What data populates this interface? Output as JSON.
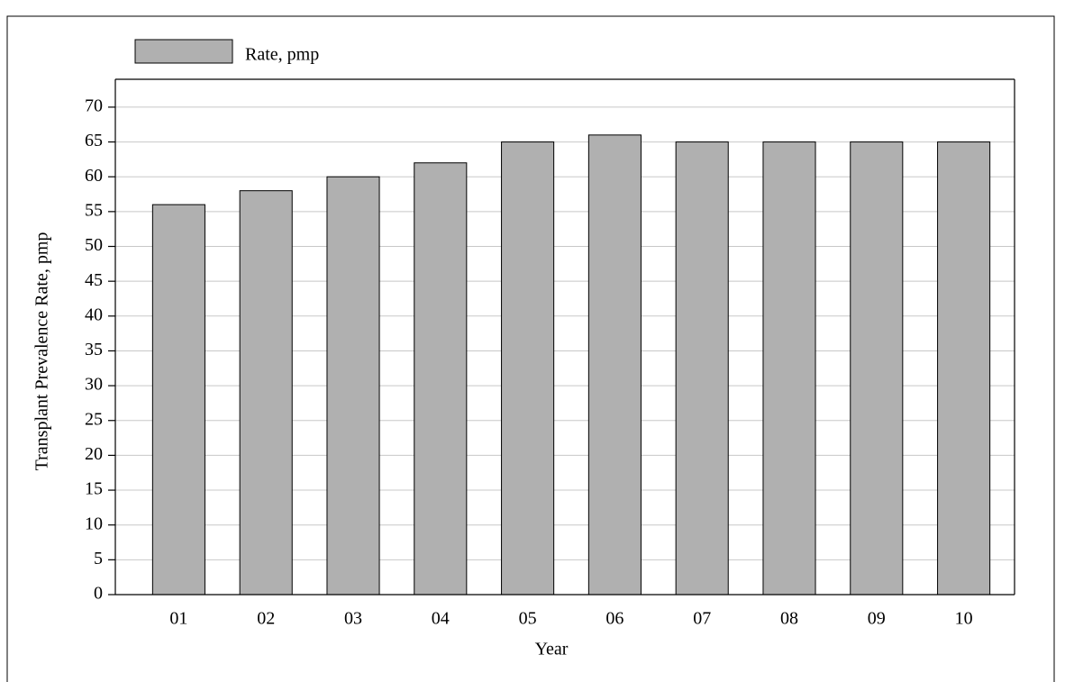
{
  "chart_data": {
    "type": "bar",
    "legend_label": "Rate, pmp",
    "x_label": "Year",
    "y_label": "Transplant Prevalence Rate, pmp",
    "categories": [
      "01",
      "02",
      "03",
      "04",
      "05",
      "06",
      "07",
      "08",
      "09",
      "10"
    ],
    "values": [
      56,
      58,
      60,
      62,
      65,
      66,
      65,
      65,
      65,
      65
    ],
    "color": "#b0b0b0",
    "ylim": [
      0,
      74
    ],
    "yticks": [
      0,
      5,
      10,
      15,
      20,
      25,
      30,
      35,
      40,
      45,
      50,
      55,
      60,
      65,
      70
    ],
    "grid": true
  }
}
